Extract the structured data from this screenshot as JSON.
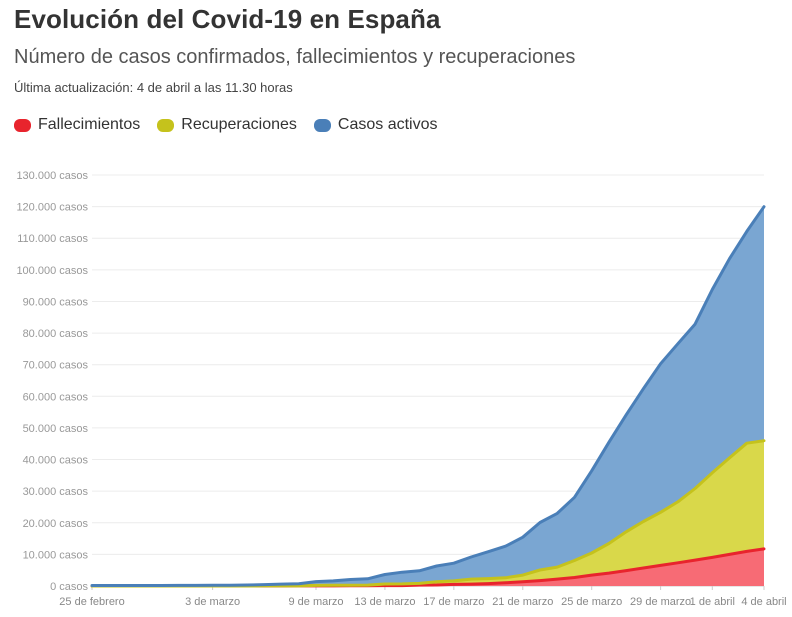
{
  "header": {
    "title": "Evolución del Covid-19 en España",
    "subtitle": "Número de casos confirmados, fallecimientos y recuperaciones",
    "updated": "Última actualización: 4 de abril a las 11.30 horas"
  },
  "chart_data": {
    "type": "area",
    "stacked": true,
    "grid": true,
    "legend_position": "top-left",
    "y_ticks": [
      "0 casos",
      "10.000 casos",
      "20.000 casos",
      "30.000 casos",
      "40.000 casos",
      "50.000 casos",
      "60.000 casos",
      "70.000 casos",
      "80.000 casos",
      "90.000 casos",
      "100.000 casos",
      "110.000 casos",
      "120.000 casos",
      "130.000 casos"
    ],
    "ylim": [
      0,
      130000
    ],
    "x_ticks": [
      {
        "label": "25 de febrero",
        "date": "2020-02-25"
      },
      {
        "label": "3 de marzo",
        "date": "2020-03-03"
      },
      {
        "label": "9 de marzo",
        "date": "2020-03-09"
      },
      {
        "label": "13 de marzo",
        "date": "2020-03-13"
      },
      {
        "label": "17 de marzo",
        "date": "2020-03-17"
      },
      {
        "label": "21 de marzo",
        "date": "2020-03-21"
      },
      {
        "label": "25 de marzo",
        "date": "2020-03-25"
      },
      {
        "label": "29 de marzo",
        "date": "2020-03-29"
      },
      {
        "label": "1 de abril",
        "date": "2020-04-01"
      },
      {
        "label": "4 de abril",
        "date": "2020-04-04"
      }
    ],
    "x": [
      "2020-02-25",
      "2020-02-26",
      "2020-02-27",
      "2020-02-28",
      "2020-02-29",
      "2020-03-01",
      "2020-03-02",
      "2020-03-03",
      "2020-03-04",
      "2020-03-05",
      "2020-03-06",
      "2020-03-07",
      "2020-03-08",
      "2020-03-09",
      "2020-03-10",
      "2020-03-11",
      "2020-03-12",
      "2020-03-13",
      "2020-03-14",
      "2020-03-15",
      "2020-03-16",
      "2020-03-17",
      "2020-03-18",
      "2020-03-19",
      "2020-03-20",
      "2020-03-21",
      "2020-03-22",
      "2020-03-23",
      "2020-03-24",
      "2020-03-25",
      "2020-03-26",
      "2020-03-27",
      "2020-03-28",
      "2020-03-29",
      "2020-03-30",
      "2020-03-31",
      "2020-04-01",
      "2020-04-02",
      "2020-04-03",
      "2020-04-04"
    ],
    "series": [
      {
        "name": "Fallecimientos",
        "color": "#e8242d",
        "fill": "#f76b75",
        "values": [
          0,
          0,
          0,
          0,
          0,
          0,
          0,
          1,
          2,
          3,
          5,
          10,
          17,
          28,
          35,
          54,
          84,
          120,
          136,
          288,
          309,
          491,
          598,
          767,
          1002,
          1326,
          1720,
          2182,
          2696,
          3434,
          4089,
          4858,
          5690,
          6528,
          7340,
          8189,
          9053,
          10003,
          10935,
          11744
        ]
      },
      {
        "name": "Recuperaciones",
        "color": "#c5c21c",
        "fill": "#d9d84a",
        "values": [
          0,
          0,
          0,
          0,
          0,
          0,
          2,
          2,
          2,
          2,
          30,
          30,
          30,
          150,
          183,
          189,
          189,
          517,
          517,
          530,
          1028,
          1107,
          1588,
          1588,
          1588,
          2125,
          3355,
          3794,
          5367,
          7015,
          9357,
          12285,
          14709,
          16780,
          19259,
          22647,
          26743,
          30513,
          34219,
          34219
        ]
      },
      {
        "name": "Casos activos",
        "color": "#4a7fb8",
        "fill": "#7aa6d2",
        "values": [
          150,
          150,
          150,
          160,
          170,
          180,
          200,
          230,
          260,
          300,
          400,
          550,
          650,
          1200,
          1400,
          1800,
          2000,
          3000,
          3700,
          4000,
          5000,
          5600,
          7000,
          8500,
          10000,
          12000,
          15000,
          17000,
          20000,
          26000,
          32000,
          37000,
          42000,
          47000,
          50000,
          52000,
          58000,
          63000,
          67000,
          74000
        ]
      }
    ]
  }
}
